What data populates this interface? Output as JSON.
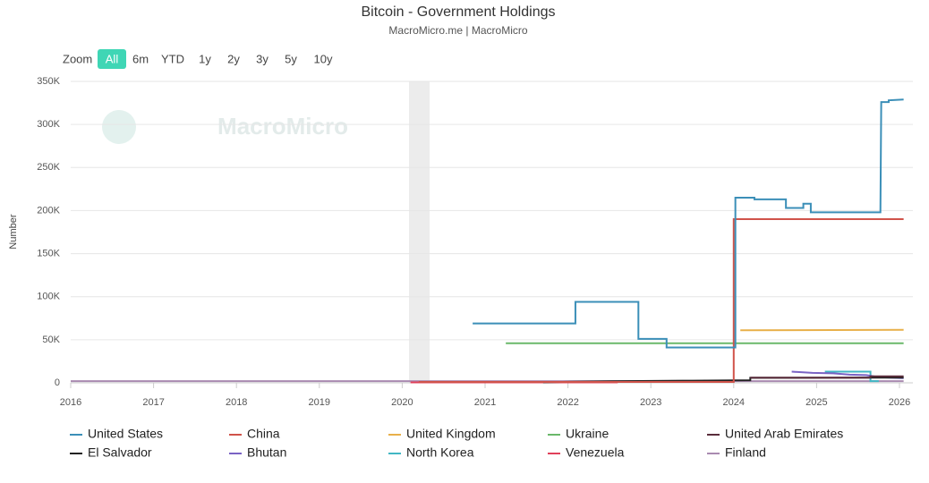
{
  "chart_data": {
    "type": "line",
    "title": "Bitcoin - Government Holdings",
    "subtitle": "MacroMicro.me | MacroMicro",
    "watermark": "MacroMicro",
    "zoom_label": "Zoom",
    "range_buttons": [
      "All",
      "6m",
      "YTD",
      "1y",
      "2y",
      "3y",
      "5y",
      "10y"
    ],
    "y_label": "Number",
    "xlim": [
      2016,
      2026
    ],
    "xticks": [
      2016,
      2017,
      2018,
      2019,
      2020,
      2021,
      2022,
      2023,
      2024,
      2025,
      2026
    ],
    "ylim": [
      0,
      350000
    ],
    "yticks": [
      0,
      {
        "value": 50000,
        "label": "50K"
      },
      {
        "value": 100000,
        "label": "100K"
      },
      {
        "value": 150000,
        "label": "150K"
      },
      {
        "value": 200000,
        "label": "200K"
      },
      {
        "value": 250000,
        "label": "250K"
      },
      {
        "value": 300000,
        "label": "300K"
      },
      {
        "value": 350000,
        "label": "350K"
      }
    ],
    "grid": true,
    "series": [
      {
        "name": "United States",
        "color": "#3b8fb8",
        "x": [
          2020.85,
          2022.09,
          2022.09,
          2022.85,
          2022.85,
          2023.19,
          2023.19,
          2024.02,
          2024.02,
          2024.25,
          2024.25,
          2024.63,
          2024.63,
          2024.84,
          2024.84,
          2024.93,
          2024.93,
          2025.77,
          2025.78,
          2025.87,
          2025.87,
          2026.05
        ],
        "values": [
          69000,
          69000,
          94000,
          94000,
          51000,
          51000,
          41000,
          41000,
          215000,
          215000,
          213000,
          213000,
          203000,
          203000,
          208000,
          208000,
          198000,
          198000,
          326000,
          326000,
          328000,
          329000
        ]
      },
      {
        "name": "China",
        "color": "#d0534a",
        "x": [
          2020.2,
          2024.0,
          2024.0,
          2026.05
        ],
        "values": [
          1000,
          1000,
          190000,
          190000
        ]
      },
      {
        "name": "United Kingdom",
        "color": "#e8b04a",
        "x": [
          2024.08,
          2026.05
        ],
        "values": [
          61000,
          61500
        ]
      },
      {
        "name": "Ukraine",
        "color": "#6ab86a",
        "x": [
          2021.25,
          2026.05
        ],
        "values": [
          46000,
          46000
        ]
      },
      {
        "name": "United Arab Emirates",
        "color": "#5a2d3c",
        "x": [
          2024.2,
          2025.65,
          2025.65,
          2026.05
        ],
        "values": [
          6000,
          6000,
          7500,
          7500
        ]
      },
      {
        "name": "El Salvador",
        "color": "#222222",
        "x": [
          2021.7,
          2022.5,
          2023.5,
          2024.0,
          2024.2,
          2024.2,
          2026.05
        ],
        "values": [
          700,
          1800,
          2500,
          2800,
          3000,
          5800,
          6100
        ]
      },
      {
        "name": "Bhutan",
        "color": "#7a63c4",
        "x": [
          2024.7,
          2024.95,
          2025.2,
          2025.4,
          2025.6,
          2025.75,
          2026.05
        ],
        "values": [
          13000,
          11500,
          11000,
          9500,
          9000,
          6500,
          5500
        ]
      },
      {
        "name": "North Korea",
        "color": "#41b7c4",
        "x": [
          2025.1,
          2025.65,
          2025.65,
          2025.75
        ],
        "values": [
          13000,
          13000,
          2000,
          2000
        ]
      },
      {
        "name": "Venezuela",
        "color": "#e0405a",
        "x": [
          2020.1,
          2022.6
        ],
        "values": [
          500,
          500
        ]
      },
      {
        "name": "Finland",
        "color": "#a98ab0",
        "x": [
          2016,
          2026.05
        ],
        "values": [
          1900,
          1900
        ]
      }
    ]
  }
}
